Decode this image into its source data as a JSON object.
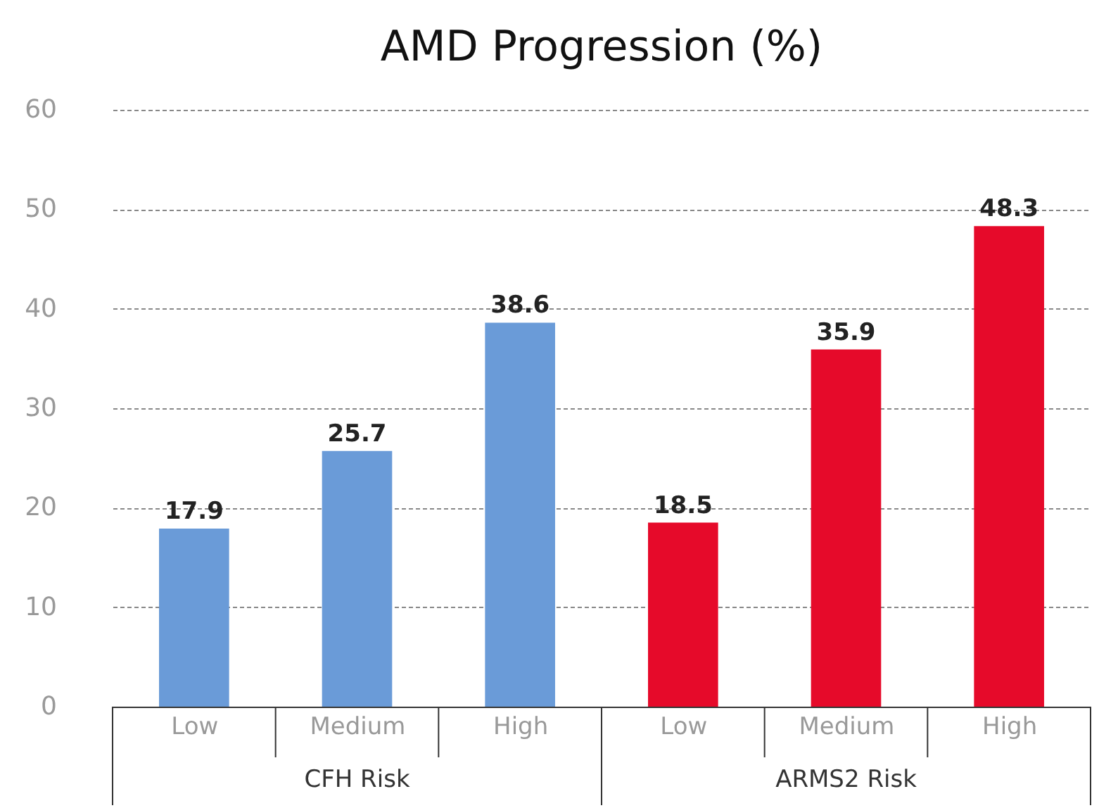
{
  "chart_data": {
    "type": "bar",
    "title": "AMD Progression (%)",
    "categories": [
      "Low",
      "Medium",
      "High",
      "Low",
      "Medium",
      "High"
    ],
    "series": [
      {
        "name": "CFH Risk",
        "color": "#6a9bd8",
        "values": [
          17.9,
          25.7,
          38.6,
          null,
          null,
          null
        ]
      },
      {
        "name": "ARMS2 Risk",
        "color": "#e60a2a",
        "values": [
          null,
          null,
          null,
          18.5,
          35.9,
          48.3
        ]
      }
    ],
    "ylim": [
      0,
      60
    ],
    "yticks": [
      0,
      10,
      20,
      30,
      40,
      50,
      60
    ],
    "grid": "y",
    "data_labels": true
  }
}
